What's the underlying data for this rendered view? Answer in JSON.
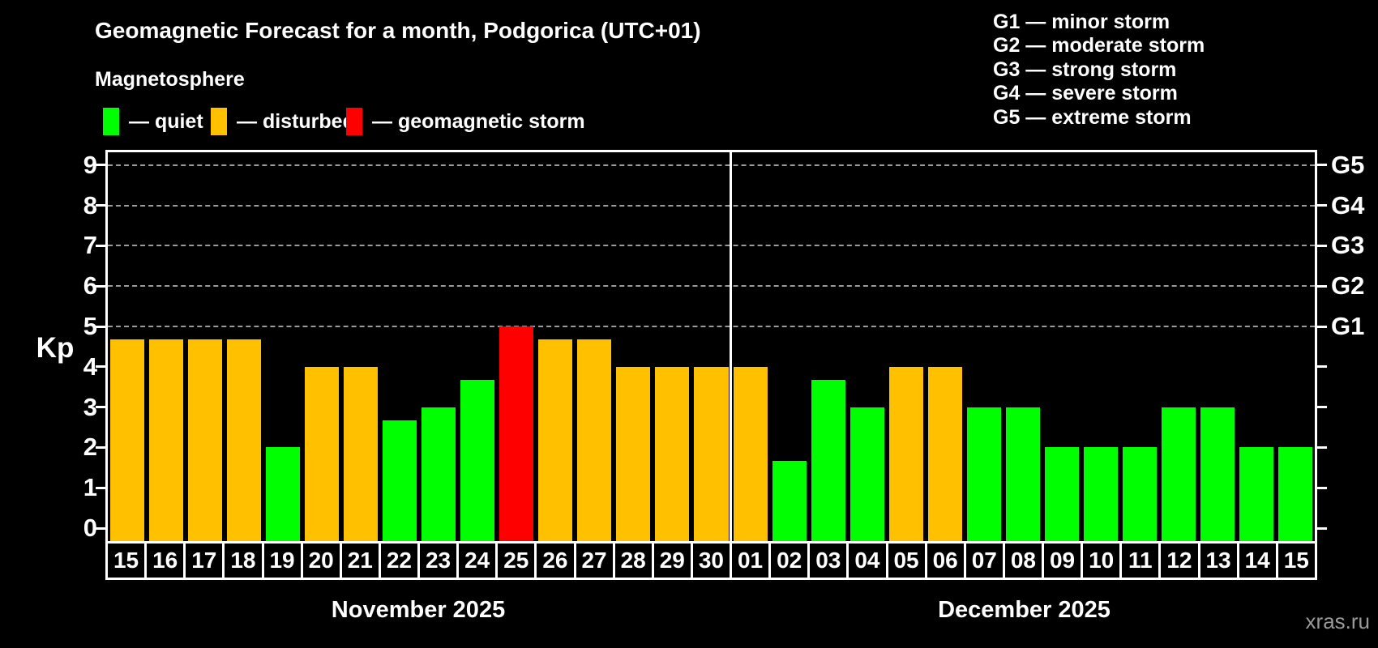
{
  "title": "Geomagnetic Forecast for a month, Podgorica (UTC+01)",
  "subtitle": "Magnetosphere",
  "watermark": "xras.ru",
  "legend": [
    {
      "status": "quiet",
      "color": "#00ff00",
      "label": "— quiet"
    },
    {
      "status": "disturbed",
      "color": "#ffc000",
      "label": "— disturbed"
    },
    {
      "status": "storm",
      "color": "#ff0000",
      "label": "— geomagnetic storm"
    }
  ],
  "g_legend": [
    "G1 — minor storm",
    "G2 — moderate storm",
    "G3 — strong storm",
    "G4 — severe storm",
    "G5 — extreme storm"
  ],
  "chart_data": {
    "type": "bar",
    "title": "Geomagnetic Forecast for a month, Podgorica (UTC+01)",
    "ylabel": "Kp",
    "ylim": [
      0,
      9
    ],
    "y_ticks": [
      0,
      1,
      2,
      3,
      4,
      5,
      6,
      7,
      8,
      9
    ],
    "gridlines_at_kp": [
      5,
      6,
      7,
      8,
      9
    ],
    "grid_style": "dashed",
    "legend_position": "top",
    "right_axis_labels": [
      {
        "kp": 5,
        "label": "G1"
      },
      {
        "kp": 6,
        "label": "G2"
      },
      {
        "kp": 7,
        "label": "G3"
      },
      {
        "kp": 8,
        "label": "G4"
      },
      {
        "kp": 9,
        "label": "G5"
      }
    ],
    "status_colors": {
      "quiet": "#00ff00",
      "disturbed": "#ffc000",
      "storm": "#ff0000"
    },
    "months": [
      {
        "label": "November 2025",
        "bars": [
          {
            "day": "15",
            "kp": 4.67,
            "status": "disturbed"
          },
          {
            "day": "16",
            "kp": 4.67,
            "status": "disturbed"
          },
          {
            "day": "17",
            "kp": 4.67,
            "status": "disturbed"
          },
          {
            "day": "18",
            "kp": 4.67,
            "status": "disturbed"
          },
          {
            "day": "19",
            "kp": 2,
            "status": "quiet"
          },
          {
            "day": "20",
            "kp": 4,
            "status": "disturbed"
          },
          {
            "day": "21",
            "kp": 4,
            "status": "disturbed"
          },
          {
            "day": "22",
            "kp": 2.67,
            "status": "quiet"
          },
          {
            "day": "23",
            "kp": 3,
            "status": "quiet"
          },
          {
            "day": "24",
            "kp": 3.67,
            "status": "quiet"
          },
          {
            "day": "25",
            "kp": 5,
            "status": "storm"
          },
          {
            "day": "26",
            "kp": 4.67,
            "status": "disturbed"
          },
          {
            "day": "27",
            "kp": 4.67,
            "status": "disturbed"
          },
          {
            "day": "28",
            "kp": 4,
            "status": "disturbed"
          },
          {
            "day": "29",
            "kp": 4,
            "status": "disturbed"
          },
          {
            "day": "30",
            "kp": 4,
            "status": "disturbed"
          }
        ]
      },
      {
        "label": "December 2025",
        "bars": [
          {
            "day": "01",
            "kp": 4,
            "status": "disturbed"
          },
          {
            "day": "02",
            "kp": 1.67,
            "status": "quiet"
          },
          {
            "day": "03",
            "kp": 3.67,
            "status": "quiet"
          },
          {
            "day": "04",
            "kp": 3,
            "status": "quiet"
          },
          {
            "day": "05",
            "kp": 4,
            "status": "disturbed"
          },
          {
            "day": "06",
            "kp": 4,
            "status": "disturbed"
          },
          {
            "day": "07",
            "kp": 3,
            "status": "quiet"
          },
          {
            "day": "08",
            "kp": 3,
            "status": "quiet"
          },
          {
            "day": "09",
            "kp": 2,
            "status": "quiet"
          },
          {
            "day": "10",
            "kp": 2,
            "status": "quiet"
          },
          {
            "day": "11",
            "kp": 2,
            "status": "quiet"
          },
          {
            "day": "12",
            "kp": 3,
            "status": "quiet"
          },
          {
            "day": "13",
            "kp": 3,
            "status": "quiet"
          },
          {
            "day": "14",
            "kp": 2,
            "status": "quiet"
          },
          {
            "day": "15",
            "kp": 2,
            "status": "quiet"
          }
        ]
      }
    ]
  }
}
